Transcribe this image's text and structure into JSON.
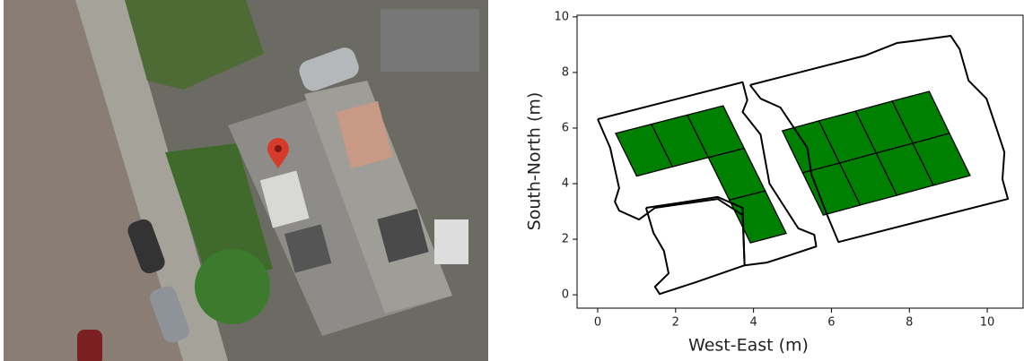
{
  "chart_data": {
    "type": "layout",
    "xlabel": "West-East (m)",
    "ylabel": "South-North (m)",
    "xlim": [
      -0.53,
      10.92
    ],
    "ylim": [
      -0.48,
      10.06
    ],
    "xticks": [
      0,
      2,
      4,
      6,
      8,
      10
    ],
    "yticks": [
      0,
      2,
      4,
      6,
      8,
      10
    ],
    "outline_color": "#000000",
    "panel_color": "#008000",
    "outlines": [
      {
        "x": [
          0,
          3.72,
          3.84,
          3.72,
          4.18,
          4.41,
          5.15,
          5.56,
          5.61,
          4.92,
          4.34,
          3.77,
          3.72,
          3.08,
          1.47,
          1.06,
          0.55,
          0.44,
          0.55,
          0.32,
          0
        ],
        "y": [
          6.32,
          7.65,
          7.0,
          6.58,
          5.77,
          4.0,
          2.39,
          2.16,
          1.74,
          1.42,
          1.16,
          1.06,
          2.87,
          3.45,
          3.13,
          2.71,
          3.03,
          3.35,
          3.84,
          5.29,
          6.32
        ]
      },
      {
        "x": [
          1.24,
          3.08,
          3.72,
          3.77,
          2.51,
          1.59,
          1.47,
          1.82,
          1.7,
          1.43,
          1.24
        ],
        "y": [
          3.13,
          3.52,
          3.13,
          1.06,
          0.45,
          0.03,
          0.29,
          0.77,
          1.58,
          2.23,
          3.13
        ]
      },
      {
        "x": [
          3.91,
          6.87,
          7.68,
          8.25,
          9.06,
          9.29,
          9.52,
          9.98,
          10.21,
          10.44,
          10.39,
          10.53,
          6.18,
          5.89,
          5.49,
          5.38,
          4.69,
          4.18,
          3.91
        ],
        "y": [
          7.55,
          8.61,
          9.06,
          9.16,
          9.32,
          8.84,
          7.71,
          7.06,
          6.1,
          5.13,
          4.16,
          3.45,
          1.9,
          2.87,
          4.32,
          5.29,
          6.74,
          7.06,
          7.55
        ]
      }
    ],
    "panels": [
      {
        "x": [
          0.46,
          1.38,
          1.92,
          1.0
        ],
        "y": [
          5.81,
          6.14,
          4.61,
          4.27
        ]
      },
      {
        "x": [
          1.38,
          2.3,
          2.84,
          1.92
        ],
        "y": [
          6.14,
          6.47,
          4.94,
          4.61
        ]
      },
      {
        "x": [
          2.3,
          3.22,
          3.76,
          2.84
        ],
        "y": [
          6.47,
          6.8,
          5.27,
          4.94
        ]
      },
      {
        "x": [
          2.84,
          3.76,
          4.3,
          3.38
        ],
        "y": [
          4.94,
          5.27,
          3.74,
          3.41
        ]
      },
      {
        "x": [
          3.38,
          4.3,
          4.84,
          3.92
        ],
        "y": [
          3.41,
          3.74,
          2.21,
          1.87
        ]
      },
      {
        "x": [
          4.74,
          5.68,
          6.21,
          5.26
        ],
        "y": [
          5.9,
          6.26,
          4.74,
          4.39
        ]
      },
      {
        "x": [
          5.68,
          6.62,
          7.15,
          6.21
        ],
        "y": [
          6.26,
          6.61,
          5.1,
          4.74
        ]
      },
      {
        "x": [
          6.62,
          7.56,
          8.09,
          7.15
        ],
        "y": [
          6.61,
          6.97,
          5.45,
          5.1
        ]
      },
      {
        "x": [
          7.56,
          8.51,
          9.03,
          8.09
        ],
        "y": [
          6.97,
          7.32,
          5.81,
          5.45
        ]
      },
      {
        "x": [
          5.26,
          6.21,
          6.74,
          5.79
        ],
        "y": [
          4.39,
          4.74,
          3.23,
          2.87
        ]
      },
      {
        "x": [
          6.21,
          7.15,
          7.68,
          6.74
        ],
        "y": [
          4.74,
          5.1,
          3.58,
          3.23
        ]
      },
      {
        "x": [
          7.15,
          8.09,
          8.62,
          7.68
        ],
        "y": [
          5.1,
          5.45,
          3.94,
          3.58
        ]
      },
      {
        "x": [
          8.09,
          9.03,
          9.56,
          8.62
        ],
        "y": [
          5.45,
          5.81,
          4.29,
          3.94
        ]
      }
    ]
  }
}
